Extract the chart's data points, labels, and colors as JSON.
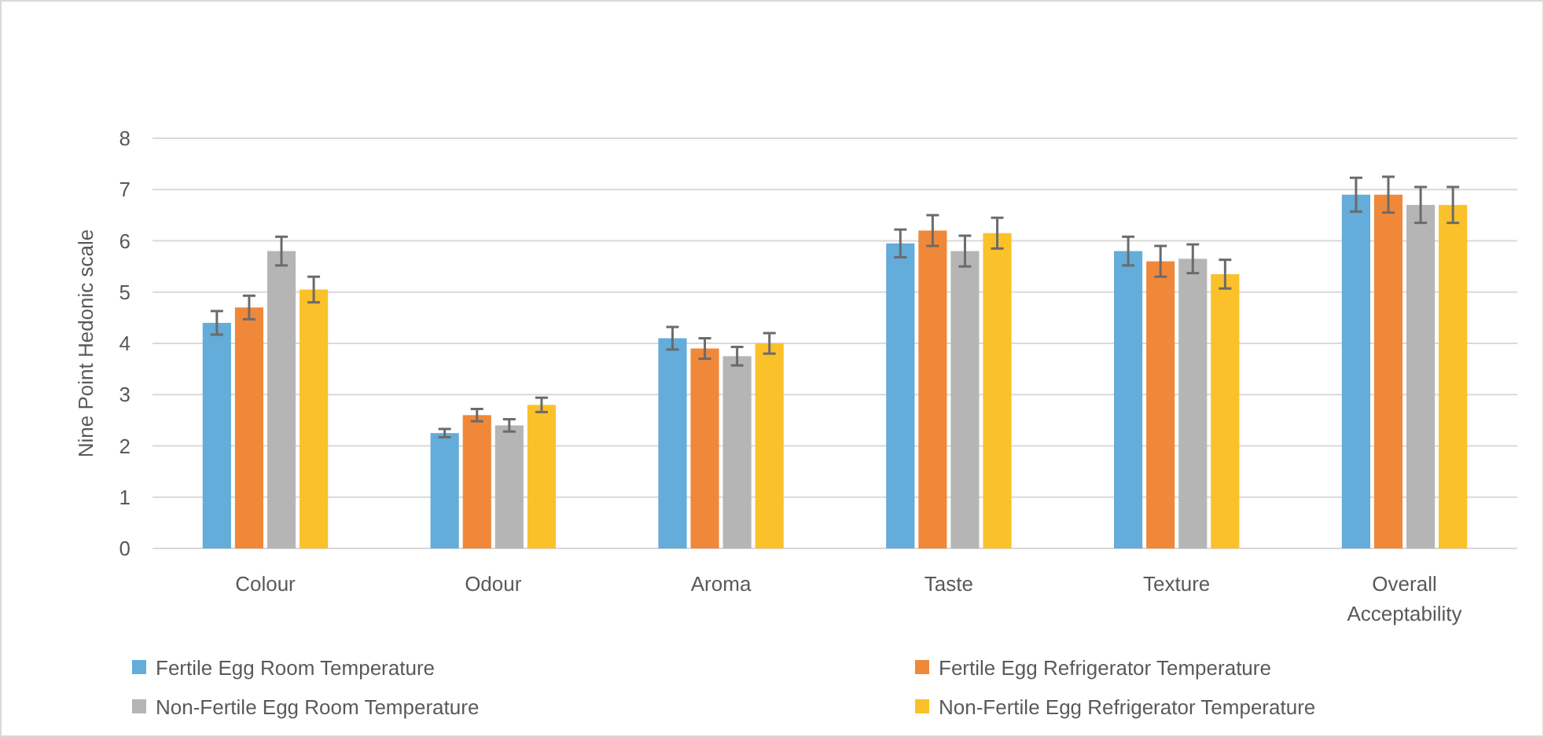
{
  "chart_data": {
    "type": "bar",
    "ylabel": "Nine Point Hedonic scale",
    "categories": [
      "Colour",
      "Odour",
      "Aroma",
      "Taste",
      "Texture",
      "Overall Acceptability"
    ],
    "series": [
      {
        "name": "Fertile Egg Room Temperature",
        "color": "#64acd9",
        "values": [
          4.4,
          2.25,
          4.1,
          5.95,
          5.8,
          6.9
        ],
        "errors": [
          0.23,
          0.08,
          0.22,
          0.27,
          0.28,
          0.33
        ]
      },
      {
        "name": "Fertile Egg Refrigerator  Temperature",
        "color": "#f0883a",
        "values": [
          4.7,
          2.6,
          3.9,
          6.2,
          5.6,
          6.9
        ],
        "errors": [
          0.23,
          0.12,
          0.2,
          0.3,
          0.3,
          0.35
        ]
      },
      {
        "name": "Non-Fertile Egg Room Temperature",
        "color": "#b5b5b5",
        "values": [
          5.8,
          2.4,
          3.75,
          5.8,
          5.65,
          6.7
        ],
        "errors": [
          0.28,
          0.12,
          0.18,
          0.3,
          0.28,
          0.35
        ]
      },
      {
        "name": "Non-Fertile Egg Refrigerator  Temperature",
        "color": "#fbc12a",
        "values": [
          5.05,
          2.8,
          4.0,
          6.15,
          5.35,
          6.7
        ],
        "errors": [
          0.25,
          0.14,
          0.2,
          0.3,
          0.28,
          0.35
        ]
      }
    ],
    "ylim": [
      0,
      8
    ],
    "yticks": [
      0,
      1,
      2,
      3,
      4,
      5,
      6,
      7,
      8
    ],
    "grid": "y",
    "legend": "bottom"
  }
}
